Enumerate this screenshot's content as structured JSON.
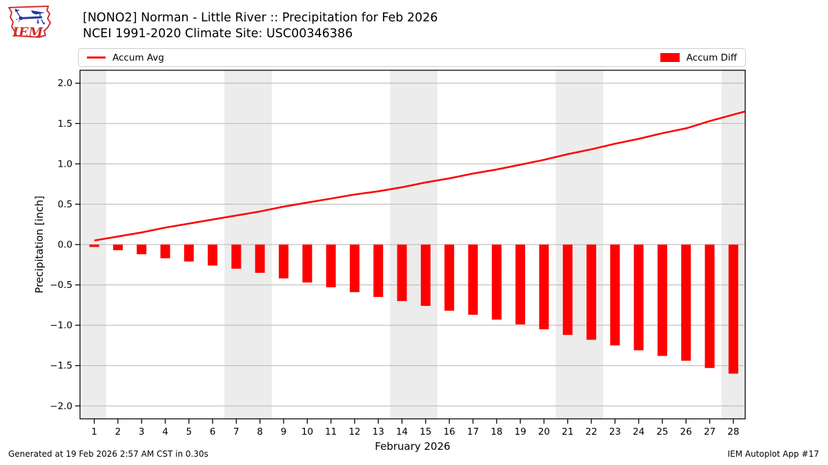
{
  "header": {
    "logo_text": "IEM",
    "title_line1": "[NONO2] Norman - Little River :: Precipitation for Feb 2026",
    "title_line2": "NCEI 1991-2020 Climate Site: USC00346386"
  },
  "legend": {
    "items": [
      {
        "label": "Accum Avg",
        "swatch": "line"
      },
      {
        "label": "Accum Diff",
        "swatch": "rect"
      }
    ]
  },
  "footer": {
    "generated_text": "Generated at 19 Feb 2026 2:57 AM CST in 0.30s",
    "app_text": "IEM Autoplot App #17"
  },
  "colors": {
    "series_red": "#ff0000",
    "grid": "#b3b3b3",
    "weekend_band": "#ececec",
    "spine": "#000000",
    "legend_border": "#cccccc",
    "logo_red": "#d03030",
    "logo_blue": "#2438a6"
  },
  "chart_data": {
    "type": "bar",
    "title": "[NONO2] Norman - Little River :: Precipitation for Feb 2026",
    "subtitle": "NCEI 1991-2020 Climate Site: USC00346386",
    "xlabel": "February 2026",
    "ylabel": "Precipitation [inch]",
    "xlim": [
      0.4,
      28.5
    ],
    "ylim": [
      -2.16,
      2.16
    ],
    "yticks": [
      2.0,
      1.5,
      1.0,
      0.5,
      0.0,
      -0.5,
      -1.0,
      -1.5,
      -2.0
    ],
    "x": [
      1,
      2,
      3,
      4,
      5,
      6,
      7,
      8,
      9,
      10,
      11,
      12,
      13,
      14,
      15,
      16,
      17,
      18,
      19,
      20,
      21,
      22,
      23,
      24,
      25,
      26,
      27,
      28
    ],
    "series": [
      {
        "name": "Accum Avg",
        "type": "line",
        "color": "#ff0000",
        "values": [
          0.05,
          0.1,
          0.15,
          0.21,
          0.26,
          0.31,
          0.36,
          0.41,
          0.47,
          0.52,
          0.57,
          0.62,
          0.66,
          0.71,
          0.77,
          0.82,
          0.88,
          0.93,
          0.99,
          1.05,
          1.12,
          1.18,
          1.25,
          1.31,
          1.38,
          1.44,
          1.53,
          1.61
        ],
        "extend_to": {
          "x": 28.5,
          "value": 1.65
        }
      },
      {
        "name": "Accum Diff",
        "type": "bar",
        "color": "#ff0000",
        "values": [
          -0.03,
          -0.07,
          -0.12,
          -0.17,
          -0.21,
          -0.26,
          -0.3,
          -0.35,
          -0.42,
          -0.47,
          -0.53,
          -0.59,
          -0.65,
          -0.7,
          -0.76,
          -0.82,
          -0.87,
          -0.93,
          -0.99,
          -1.05,
          -1.12,
          -1.18,
          -1.25,
          -1.31,
          -1.38,
          -1.44,
          -1.53,
          -1.6
        ]
      }
    ],
    "weekend_bands": [
      [
        0.5,
        1.5
      ],
      [
        6.5,
        8.5
      ],
      [
        13.5,
        15.5
      ],
      [
        20.5,
        22.5
      ],
      [
        27.5,
        28.5
      ]
    ],
    "grid": true,
    "legend_position": "top"
  }
}
